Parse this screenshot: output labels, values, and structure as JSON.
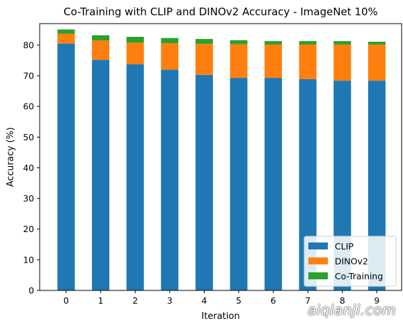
{
  "chart_data": {
    "type": "bar",
    "stacked": true,
    "title": "Co-Training with CLIP and DINOv2 Accuracy - ImageNet 10%",
    "xlabel": "Iteration",
    "ylabel": "Accuracy (%)",
    "categories": [
      "0",
      "1",
      "2",
      "3",
      "4",
      "5",
      "6",
      "7",
      "8",
      "9"
    ],
    "ylim": [
      0,
      87
    ],
    "yticks": [
      0,
      10,
      20,
      30,
      40,
      50,
      60,
      70,
      80
    ],
    "grid": false,
    "legend_position": "bottom-right",
    "series": [
      {
        "name": "CLIP",
        "color": "#1f77b4",
        "values": [
          80.5,
          75.2,
          73.8,
          72.0,
          70.3,
          69.3,
          69.3,
          68.9,
          68.4,
          68.4
        ]
      },
      {
        "name": "DINOv2",
        "color": "#ff7f0e",
        "values": [
          3.2,
          6.3,
          7.0,
          8.6,
          10.1,
          11.0,
          10.9,
          11.3,
          11.8,
          11.8
        ]
      },
      {
        "name": "Co-Training",
        "color": "#2ca02c",
        "values": [
          1.4,
          1.7,
          1.9,
          1.7,
          1.6,
          1.3,
          1.1,
          1.1,
          1.1,
          0.9
        ]
      }
    ]
  },
  "watermark": "aiqianji.com"
}
